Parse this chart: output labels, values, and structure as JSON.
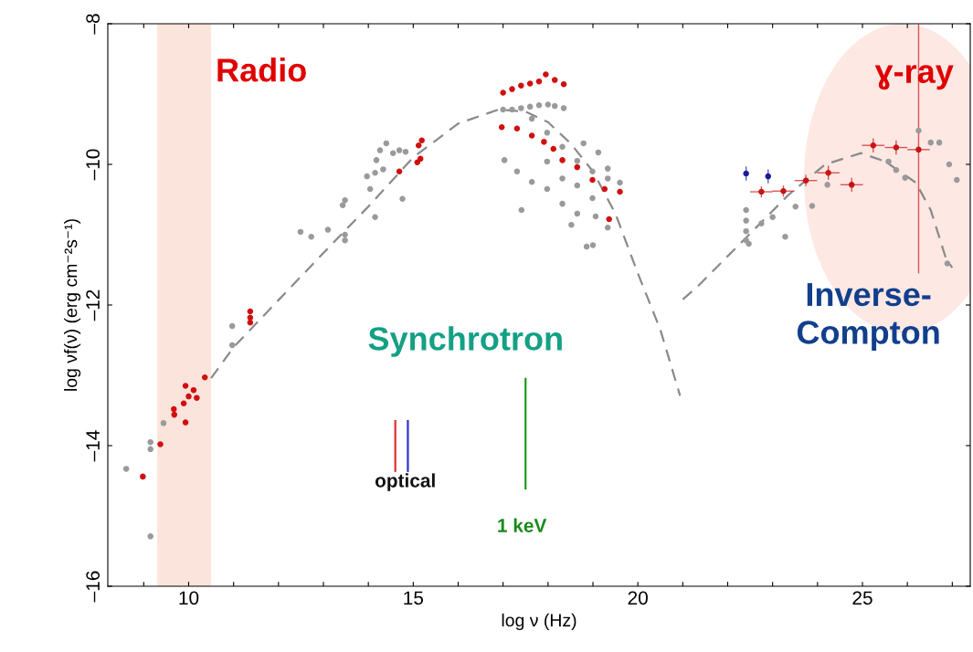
{
  "chart_data": {
    "type": "scatter",
    "xlabel": "log ν (Hz)",
    "ylabel": "log νf(ν) (erg cm⁻²s⁻¹)",
    "xlim": [
      8.2,
      27.4
    ],
    "ylim": [
      -16,
      -8
    ],
    "xticks": [
      {
        "value": 9,
        "label": null
      },
      10,
      {
        "value": 11,
        "label": null
      },
      {
        "value": 12,
        "label": null
      },
      {
        "value": 13,
        "label": null
      },
      {
        "value": 14,
        "label": null
      },
      15,
      {
        "value": 16,
        "label": null
      },
      {
        "value": 17,
        "label": null
      },
      {
        "value": 18,
        "label": null
      },
      {
        "value": 19,
        "label": null
      },
      20,
      {
        "value": 21,
        "label": null
      },
      {
        "value": 22,
        "label": null
      },
      {
        "value": 23,
        "label": null
      },
      {
        "value": 24,
        "label": null
      },
      25,
      {
        "value": 26,
        "label": null
      },
      {
        "value": 27,
        "label": null
      }
    ],
    "yticks": [
      {
        "value": -16,
        "label": "–16"
      },
      {
        "value": -14,
        "label": "–14"
      },
      {
        "value": -12,
        "label": "–12"
      },
      {
        "value": -10,
        "label": "–10"
      },
      {
        "value": -8,
        "label": "–8"
      }
    ],
    "grid": false,
    "legend": false,
    "marker": "circle",
    "bands": [
      {
        "axis": "x",
        "from": 9.3,
        "to": 10.5,
        "label": "Radio",
        "color": "#fbe4dc"
      }
    ],
    "series": [
      {
        "type": "line",
        "color": "#8a8a8a",
        "line_style": "dashed",
        "marker": "none",
        "x": [
          10.5,
          11.0,
          12.0,
          13.0,
          14.0,
          15.0,
          16.0,
          16.9,
          17.5,
          18.0,
          18.5,
          19.0,
          19.5,
          20.0,
          20.5,
          20.94
        ],
        "values": [
          -13.04,
          -12.6,
          -11.93,
          -11.26,
          -10.6,
          -9.9,
          -9.42,
          -9.22,
          -9.25,
          -9.4,
          -9.7,
          -10.1,
          -10.7,
          -11.55,
          -12.35,
          -13.29
        ]
      },
      {
        "type": "line",
        "color": "#8a8a8a",
        "line_style": "dashed",
        "marker": "none",
        "x": [
          21.0,
          21.34,
          22.35,
          23.36,
          24.17,
          24.97,
          25.51,
          26.19,
          26.52,
          26.86,
          27.0
        ],
        "values": [
          -11.92,
          -11.73,
          -11.08,
          -10.43,
          -10.0,
          -9.84,
          -9.96,
          -10.26,
          -10.65,
          -11.34,
          -11.47
        ]
      },
      {
        "color": "#9a9a9a",
        "x": [
          8.61,
          9.15,
          9.15,
          9.15,
          9.44,
          10.97,
          10.97,
          12.49,
          12.73,
          13.1,
          13.48,
          13.48,
          13.43,
          13.48,
          14.15,
          14.76,
          13.97,
          14.04,
          14.18,
          14.26,
          14.4,
          14.55,
          14.69,
          14.83,
          14.33,
          14.15,
          17.0,
          17.2,
          17.4,
          17.6,
          17.8,
          18.0,
          18.15,
          18.35,
          17.64,
          17.98,
          18.32,
          18.65,
          18.99,
          19.33,
          19.6,
          17.41,
          18.52,
          18.86,
          19.0,
          17.03,
          17.31,
          17.64,
          17.98,
          18.32,
          18.65,
          17.98,
          18.32,
          18.65,
          18.99,
          19.06,
          19.33,
          18.79,
          19.12,
          19.33,
          22.41,
          22.41,
          22.41,
          22.41,
          22.47,
          22.75,
          23.0,
          23.28,
          23.51,
          23.88,
          24.22,
          25.58,
          25.75,
          25.95,
          26.25,
          26.52,
          26.71,
          26.93,
          27.1,
          26.89
        ],
        "values": [
          -14.33,
          -15.29,
          -13.95,
          -14.05,
          -13.68,
          -12.3,
          -12.57,
          -10.96,
          -11.03,
          -10.93,
          -11.0,
          -11.08,
          -10.58,
          -10.51,
          -10.75,
          -10.49,
          -10.17,
          -10.35,
          -9.94,
          -9.8,
          -9.7,
          -9.84,
          -9.8,
          -9.82,
          -10.07,
          -10.12,
          -9.22,
          -9.22,
          -9.2,
          -9.18,
          -9.16,
          -9.15,
          -9.17,
          -9.2,
          -9.35,
          -9.55,
          -9.75,
          -9.95,
          -10.1,
          -10.2,
          -10.26,
          -10.65,
          -10.86,
          -11.17,
          -11.15,
          -9.94,
          -10.1,
          -10.25,
          -10.35,
          -10.56,
          -10.7,
          -9.96,
          -10.2,
          -10.3,
          -10.48,
          -10.74,
          -10.9,
          -9.7,
          -9.83,
          -10.06,
          -10.65,
          -10.8,
          -10.95,
          -11.08,
          -11.13,
          -10.84,
          -10.75,
          -11.03,
          -10.6,
          -10.59,
          -10.29,
          -9.96,
          -10.08,
          -10.19,
          -9.52,
          -9.69,
          -9.69,
          -10.0,
          -10.22,
          -11.41
        ]
      },
      {
        "color": "#d01010",
        "x": [
          8.98,
          9.37,
          9.67,
          9.68,
          9.89,
          9.93,
          10.0,
          10.11,
          10.18,
          10.36,
          9.93,
          11.37,
          11.37,
          11.37,
          14.69,
          15.09,
          15.16,
          15.12,
          15.19,
          17.0,
          17.2,
          17.4,
          17.6,
          17.8,
          17.95,
          18.15,
          18.35,
          16.97,
          17.31,
          17.64,
          17.91,
          18.12,
          18.32,
          18.65,
          18.99,
          19.26,
          19.6,
          19.36
        ],
        "values": [
          -14.44,
          -13.98,
          -13.48,
          -13.56,
          -13.4,
          -13.67,
          -13.3,
          -13.21,
          -13.32,
          -13.03,
          -13.15,
          -12.09,
          -12.18,
          -12.25,
          -10.1,
          -9.97,
          -9.92,
          -9.73,
          -9.66,
          -8.98,
          -8.93,
          -8.88,
          -8.85,
          -8.82,
          -8.72,
          -8.8,
          -8.86,
          -9.47,
          -9.49,
          -9.59,
          -9.68,
          -9.78,
          -9.94,
          -10.04,
          -10.22,
          -10.35,
          -10.39,
          -10.78
        ]
      },
      {
        "color": "#c81414",
        "x": [
          22.75,
          23.24,
          23.74,
          24.24,
          24.76,
          25.24,
          25.75,
          26.25
        ],
        "values": [
          -10.39,
          -10.38,
          -10.23,
          -10.12,
          -10.29,
          -9.73,
          -9.76,
          -9.79
        ],
        "errors": [
          0.08,
          0.08,
          0.08,
          0.1,
          0.1,
          0.1,
          0.1,
          [
            -11.55,
            -8.0
          ]
        ],
        "xerrors": [
          0.25,
          0.25,
          0.25,
          0.25,
          0.25,
          0.25,
          0.25,
          0.25
        ]
      },
      {
        "color": "#1a1a9a",
        "x": [
          22.41,
          22.9
        ],
        "values": [
          -10.13,
          -10.17
        ],
        "errors": [
          0.1,
          0.1
        ]
      },
      {
        "type": "line",
        "color": "#e03030",
        "marker": "none",
        "x": [
          14.6,
          14.6
        ],
        "values": [
          -13.65,
          -14.36
        ]
      },
      {
        "type": "line",
        "color": "#3030d0",
        "marker": "none",
        "x": [
          14.88,
          14.88
        ],
        "values": [
          -13.65,
          -14.36
        ]
      },
      {
        "type": "line",
        "color": "#1a9a1a",
        "marker": "none",
        "x": [
          17.5,
          17.5
        ],
        "values": [
          -13.05,
          -14.61
        ]
      }
    ],
    "annotations": [
      "ɣ-ray",
      "Synchrotron",
      "Inverse-\nCompton",
      "optical",
      "1 keV"
    ]
  }
}
